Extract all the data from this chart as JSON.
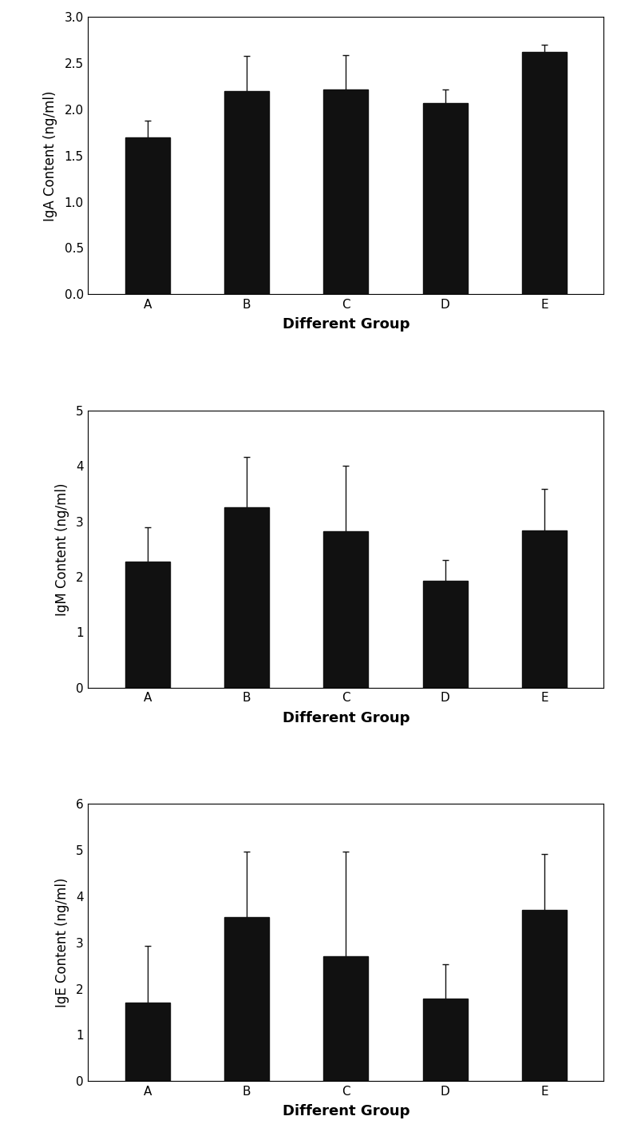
{
  "categories": [
    "A",
    "B",
    "C",
    "D",
    "E"
  ],
  "iga": {
    "values": [
      1.7,
      2.2,
      2.22,
      2.07,
      2.62
    ],
    "errors": [
      0.18,
      0.38,
      0.37,
      0.15,
      0.08
    ],
    "ylabel": "IgA Content (ng/ml)",
    "ylim": [
      0.0,
      3.0
    ],
    "yticks": [
      0.0,
      0.5,
      1.0,
      1.5,
      2.0,
      2.5,
      3.0
    ]
  },
  "igm": {
    "values": [
      2.27,
      3.25,
      2.82,
      1.93,
      2.83
    ],
    "errors": [
      0.63,
      0.92,
      1.18,
      0.38,
      0.75
    ],
    "ylabel": "IgM Content (ng/ml)",
    "ylim": [
      0,
      5
    ],
    "yticks": [
      0,
      1,
      2,
      3,
      4,
      5
    ]
  },
  "ige": {
    "values": [
      1.7,
      3.55,
      2.7,
      1.78,
      3.7
    ],
    "errors": [
      1.23,
      1.42,
      2.27,
      0.75,
      1.22
    ],
    "ylabel": "IgE Content (ng/ml)",
    "ylim": [
      0,
      6
    ],
    "yticks": [
      0,
      1,
      2,
      3,
      4,
      5,
      6
    ]
  },
  "xlabel": "Different Group",
  "bar_color": "#111111",
  "error_color": "#111111",
  "bar_width": 0.45,
  "background_color": "#ffffff",
  "font_family": "Times New Roman",
  "tick_fontsize": 11,
  "label_fontsize": 12,
  "xlabel_fontsize": 13
}
